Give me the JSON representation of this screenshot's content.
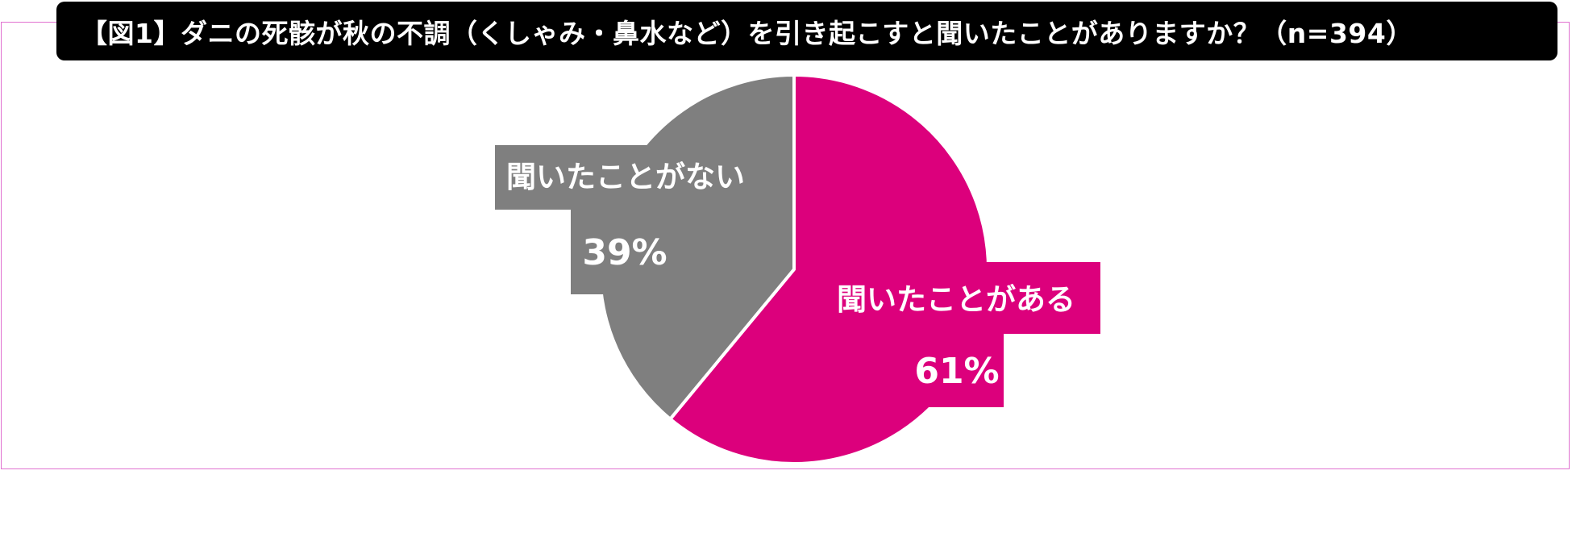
{
  "chart_data": {
    "type": "pie",
    "title": "【図1】ダニの死骸が秋の不調（くしゃみ・鼻水など）を引き起こすと聞いたことがありますか？（n=394）",
    "slices": [
      {
        "label": "聞いたことがある",
        "value": 61,
        "value_label": "61%",
        "color": "#dc007c"
      },
      {
        "label": "聞いたことがない",
        "value": 39,
        "value_label": "39%",
        "color": "#7f7f7f"
      }
    ]
  }
}
